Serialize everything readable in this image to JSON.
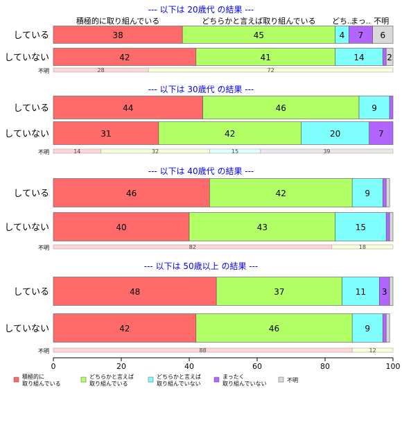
{
  "chart_data": {
    "type": "bar",
    "orientation": "horizontal-stacked",
    "xlim": [
      0,
      100
    ],
    "x_ticks": [
      "0",
      "20",
      "40",
      "60",
      "80",
      "100"
    ],
    "segment_labels": [
      "積極的に取り組んでいる",
      "どちらかと言えば取り組んでいる",
      "どち..",
      "まっ..",
      "不明"
    ],
    "colors": [
      "#ff6b6b",
      "#b3ff66",
      "#80ffff",
      "#b266ff",
      "#d9d9d9"
    ],
    "panels": [
      {
        "title": "--- 以下は 20歳代 の結果 ---",
        "rows": [
          {
            "label": "している",
            "values": [
              38,
              45,
              4,
              7,
              6
            ]
          },
          {
            "label": "していない",
            "values": [
              42,
              41,
              14,
              1,
              2
            ]
          }
        ],
        "unknown": {
          "label": "不明",
          "values": [
            28,
            72
          ]
        }
      },
      {
        "title": "--- 以下は 30歳代 の結果 ---",
        "rows": [
          {
            "label": "している",
            "values": [
              44,
              46,
              9,
              1,
              0
            ]
          },
          {
            "label": "していない",
            "values": [
              31,
              42,
              20,
              7,
              0
            ]
          }
        ],
        "unknown": {
          "label": "不明",
          "values": [
            14,
            32,
            15,
            39
          ]
        }
      },
      {
        "title": "--- 以下は 40歳代 の結果 ---",
        "rows": [
          {
            "label": "している",
            "values": [
              46,
              42,
              9,
              1,
              1
            ]
          },
          {
            "label": "していない",
            "values": [
              40,
              43,
              15,
              1,
              1
            ]
          }
        ],
        "unknown": {
          "label": "不明",
          "values": [
            82,
            18
          ]
        }
      },
      {
        "title": "--- 以下は 50歳以上 の結果 ---",
        "rows": [
          {
            "label": "している",
            "values": [
              48,
              37,
              11,
              3,
              1
            ]
          },
          {
            "label": "していない",
            "values": [
              42,
              46,
              9,
              1,
              1
            ]
          }
        ],
        "unknown": {
          "label": "不明",
          "values": [
            88,
            12
          ]
        }
      }
    ],
    "legend": [
      {
        "label": "積極的に\n取り組んでいる",
        "color": "#ff6b6b"
      },
      {
        "label": "どちらかと言えば\n取り組んでいる",
        "color": "#b3ff66"
      },
      {
        "label": "どちらかと言えば\n取り組んでいない",
        "color": "#80ffff"
      },
      {
        "label": "まったく\n取り組んでいない",
        "color": "#b266ff"
      },
      {
        "label": "不明",
        "color": "#d9d9d9"
      }
    ]
  }
}
